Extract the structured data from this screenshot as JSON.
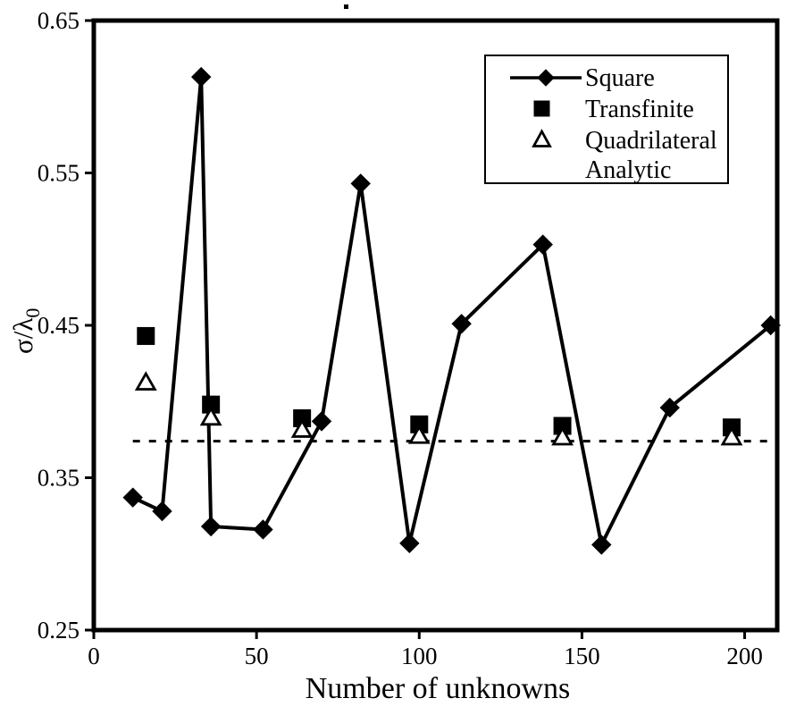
{
  "figure": {
    "background": "#ffffff",
    "ink_color": "#000000"
  },
  "chart_data": {
    "type": "line",
    "title": "",
    "xlabel": "Number of unknowns",
    "ylabel": "σ/λ0",
    "ylabel_main": "σ/λ",
    "ylabel_sub": "0",
    "xlim": [
      0,
      210
    ],
    "ylim": [
      0.25,
      0.65
    ],
    "x_ticks": [
      0,
      50,
      100,
      150,
      200
    ],
    "x_tick_labels": [
      "0",
      "50",
      "100",
      "150",
      "200"
    ],
    "y_ticks": [
      0.25,
      0.35,
      0.45,
      0.55,
      0.65
    ],
    "y_tick_labels": [
      "0.25",
      "0.35",
      "0.45",
      "0.55",
      "0.65"
    ],
    "grid": false,
    "legend_position": "top-right",
    "reference_line": {
      "value": 0.374,
      "style": "dashed",
      "x_start": 12,
      "x_end": 209
    },
    "series": [
      {
        "name": "Square",
        "marker": "filled-diamond",
        "line": true,
        "points": [
          [
            12,
            0.337
          ],
          [
            21,
            0.328
          ],
          [
            33,
            0.613
          ],
          [
            36,
            0.318
          ],
          [
            52,
            0.316
          ],
          [
            70,
            0.387
          ],
          [
            82,
            0.543
          ],
          [
            97,
            0.307
          ],
          [
            113,
            0.451
          ],
          [
            138,
            0.503
          ],
          [
            156,
            0.306
          ],
          [
            177,
            0.396
          ],
          [
            208,
            0.45
          ]
        ]
      },
      {
        "name": "Transfinite",
        "marker": "filled-square",
        "line": false,
        "points": [
          [
            16,
            0.443
          ],
          [
            36,
            0.398
          ],
          [
            64,
            0.389
          ],
          [
            100,
            0.385
          ],
          [
            144,
            0.384
          ],
          [
            196,
            0.383
          ]
        ]
      },
      {
        "name": "Quadrilateral Analytic",
        "marker": "open-triangle",
        "line": false,
        "points": [
          [
            16,
            0.413
          ],
          [
            36,
            0.39
          ],
          [
            64,
            0.382
          ],
          [
            100,
            0.378
          ],
          [
            144,
            0.377
          ],
          [
            196,
            0.377
          ]
        ]
      }
    ],
    "legend": {
      "entries": [
        {
          "label": "Square"
        },
        {
          "label": "Transfinite"
        },
        {
          "label": "Quadrilateral"
        },
        {
          "label": "Analytic"
        }
      ]
    }
  }
}
